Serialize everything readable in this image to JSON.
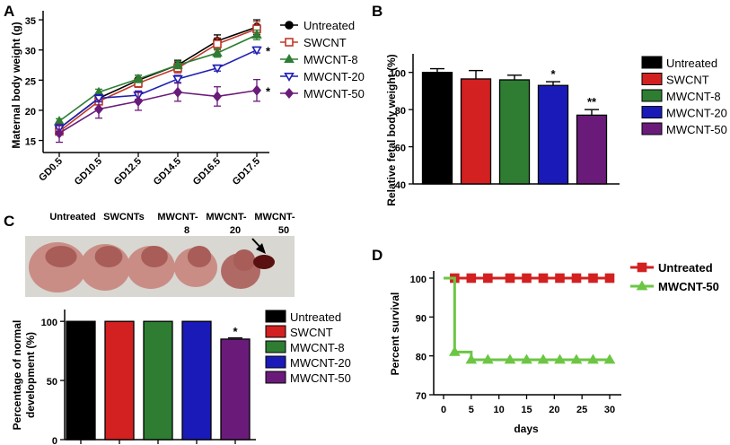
{
  "panels": {
    "A": {
      "letter": "A",
      "chart_data": {
        "type": "line",
        "ylabel": "Maternal body weight (g)",
        "xlabel": "",
        "categories": [
          "GD0.5",
          "GD10.5",
          "GD12.5",
          "GD14.5",
          "GD16.5",
          "GD17.5"
        ],
        "ylim": [
          13,
          36.5
        ],
        "yticks": [
          15,
          20,
          25,
          30,
          35
        ],
        "series": [
          {
            "name": "Untreated",
            "marker": "circle",
            "color": "#000000",
            "values": [
              17.0,
              22.0,
              25.0,
              27.5,
              31.5,
              33.8
            ],
            "errors": [
              0.6,
              0.5,
              0.8,
              0.8,
              1.0,
              1.2
            ]
          },
          {
            "name": "SWCNT",
            "marker": "square",
            "color": "#c0392b",
            "values": [
              16.5,
              21.5,
              24.5,
              27.0,
              31.0,
              33.5
            ],
            "errors": [
              0.6,
              0.6,
              0.7,
              0.8,
              1.0,
              1.2
            ]
          },
          {
            "name": "MWCNT-8",
            "marker": "triangle",
            "color": "#2e7d32",
            "values": [
              18.2,
              23.0,
              25.2,
              27.5,
              29.5,
              32.5
            ],
            "errors": [
              0.4,
              0.5,
              0.6,
              0.6,
              0.7,
              0.8
            ]
          },
          {
            "name": "MWCNT-20",
            "marker": "triangle-down",
            "color": "#1f1fb4",
            "values": [
              17.0,
              22.0,
              22.5,
              25.2,
              27.0,
              30.0
            ],
            "errors": [
              0.5,
              0.6,
              0.7,
              0.6,
              0.5,
              0.5
            ]
          },
          {
            "name": "MWCNT-50",
            "marker": "diamond",
            "color": "#6a1b7a",
            "values": [
              16.2,
              20.2,
              21.5,
              23.0,
              22.3,
              23.3
            ],
            "errors": [
              1.5,
              1.5,
              1.5,
              1.5,
              1.6,
              1.8
            ]
          }
        ],
        "annotations": [
          {
            "series": "MWCNT-20",
            "category": "GD17.5",
            "text": "*"
          },
          {
            "series": "MWCNT-50",
            "category": "GD17.5",
            "text": "*"
          }
        ],
        "legend": "right"
      }
    },
    "B": {
      "letter": "B",
      "chart_data": {
        "type": "bar",
        "ylabel": "Relative fetal body weight (%)",
        "xlabel": "",
        "categories": [
          "Untreated",
          "SWCNT",
          "MWCNT-8",
          "MWCNT-20",
          "MWCNT-50"
        ],
        "values": [
          100,
          96.5,
          96,
          93,
          77
        ],
        "errors": [
          2,
          4.5,
          2.5,
          2,
          3
        ],
        "colors": [
          "#000000",
          "#d32020",
          "#2e7d32",
          "#1a1ab8",
          "#6a1b7a"
        ],
        "ylim": [
          40,
          110
        ],
        "yticks": [
          40,
          60,
          80,
          100
        ],
        "annotations": [
          "",
          "",
          "",
          "*",
          "**"
        ],
        "legend": "right"
      }
    },
    "C": {
      "letter": "C",
      "photo_labels": [
        {
          "line1": "Untreated",
          "line2": ""
        },
        {
          "line1": "SWCNTs",
          "line2": ""
        },
        {
          "line1": "MWCNT-",
          "line2": "8"
        },
        {
          "line1": "MWCNT-",
          "line2": "20"
        },
        {
          "line1": "MWCNT-",
          "line2": "50"
        }
      ],
      "chart_data": {
        "type": "bar",
        "ylabel": "Percentage of normal development (%)",
        "ylabel_lines": [
          "Percentage of normal",
          "development (%)"
        ],
        "xlabel": "",
        "categories": [
          "Untreated",
          "SWCNT",
          "MWCNT-8",
          "MWCNT-20",
          "MWCNT-50"
        ],
        "values": [
          100,
          100,
          100,
          100,
          85
        ],
        "errors": [
          0,
          0,
          0,
          0,
          1
        ],
        "colors": [
          "#000000",
          "#d32020",
          "#2e7d32",
          "#1a1ab8",
          "#6a1b7a"
        ],
        "ylim": [
          0,
          110
        ],
        "yticks": [
          0,
          50,
          100
        ],
        "annotations": [
          "",
          "",
          "",
          "",
          "*"
        ],
        "legend": "right"
      }
    },
    "D": {
      "letter": "D",
      "chart_data": {
        "type": "line",
        "ylabel": "Percent survival",
        "xlabel": "days",
        "xlim": [
          0,
          32
        ],
        "xticks": [
          0,
          5,
          10,
          15,
          20,
          25,
          30
        ],
        "ylim": [
          70,
          102
        ],
        "yticks": [
          70,
          80,
          90,
          100
        ],
        "series": [
          {
            "name": "Untreated",
            "color": "#d32020",
            "marker": "square",
            "step": false,
            "x": [
              2,
              5,
              8,
              12,
              15,
              18,
              21,
              24,
              27,
              30
            ],
            "y": [
              100,
              100,
              100,
              100,
              100,
              100,
              100,
              100,
              100,
              100
            ]
          },
          {
            "name": "MWCNT-50",
            "color": "#6cc644",
            "marker": "triangle",
            "step": true,
            "x": [
              2,
              5,
              8,
              12,
              15,
              18,
              21,
              24,
              27,
              30
            ],
            "y": [
              81,
              79,
              79,
              79,
              79,
              79,
              79,
              79,
              79,
              79
            ],
            "step_path": [
              [
                0,
                100
              ],
              [
                2,
                100
              ],
              [
                2,
                81
              ],
              [
                5,
                81
              ],
              [
                5,
                79
              ],
              [
                30,
                79
              ]
            ]
          }
        ],
        "legend": "right"
      }
    }
  }
}
